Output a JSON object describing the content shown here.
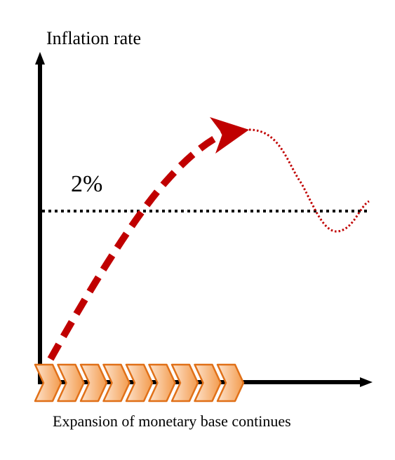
{
  "y_axis_label": "Inflation rate",
  "target_label": "2%",
  "x_axis_label": "Expansion of monetary base continues",
  "colors": {
    "axis": "#000000",
    "path": "#c00000",
    "chevron_fill_light": "#fde3cc",
    "chevron_fill_dark": "#f39a4c",
    "chevron_stroke": "#e07018"
  },
  "chevron_count": 9
}
